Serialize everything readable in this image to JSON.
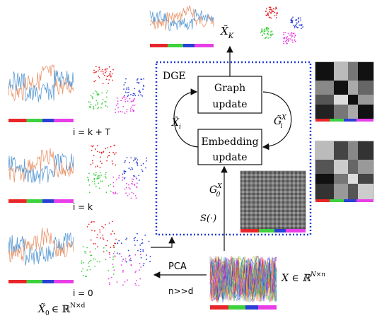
{
  "dge": {
    "title": "DGE",
    "graph_update": [
      "Graph",
      "update"
    ],
    "embedding_update": [
      "Embedding",
      "update"
    ],
    "loop_left": "X̃",
    "loop_left_sub": "i",
    "loop_right": "G̃",
    "loop_right_sup": "X",
    "loop_right_sub": "i",
    "g0": "G",
    "g0_sup": "X",
    "g0_sub": "0",
    "s_fn": "S(·)"
  },
  "output": {
    "label": "X̃",
    "sub": "K"
  },
  "iterations": [
    {
      "label": "i = k + T"
    },
    {
      "label": "i = k"
    },
    {
      "label": "i = 0"
    }
  ],
  "initial": {
    "label": "X̃",
    "sub": "0",
    "space": "∈ ℝ",
    "sup": "N×d"
  },
  "input": {
    "label": "X ∈ ℝ",
    "sup": "N×n"
  },
  "pca": {
    "label": "PCA",
    "note": "n>>d"
  },
  "colors": {
    "red": "#e8262a",
    "green": "#3dd13d",
    "blue": "#2b3fd6",
    "magenta": "#e83ee6",
    "series_blue": "#5b9bd5",
    "series_orange": "#e8956b",
    "frame": "#1f3fd0"
  }
}
